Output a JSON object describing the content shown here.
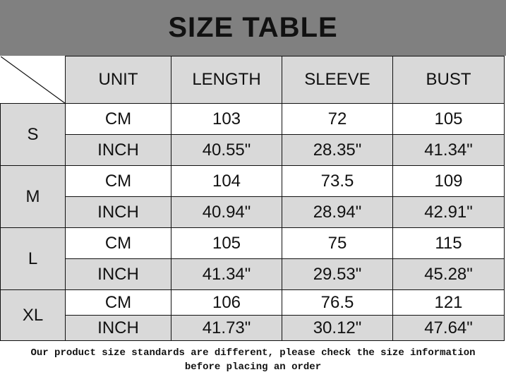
{
  "title": "SIZE TABLE",
  "columns": [
    "UNIT",
    "LENGTH",
    "SLEEVE",
    "BUST"
  ],
  "sizes": [
    {
      "size": "S",
      "rows": [
        {
          "unit": "CM",
          "length": "103",
          "sleeve": "72",
          "bust": "105"
        },
        {
          "unit": "INCH",
          "length": "40.55\"",
          "sleeve": "28.35\"",
          "bust": "41.34\""
        }
      ]
    },
    {
      "size": "M",
      "rows": [
        {
          "unit": "CM",
          "length": "104",
          "sleeve": "73.5",
          "bust": "109"
        },
        {
          "unit": "INCH",
          "length": "40.94\"",
          "sleeve": "28.94\"",
          "bust": "42.91\""
        }
      ]
    },
    {
      "size": "L",
      "rows": [
        {
          "unit": "CM",
          "length": "105",
          "sleeve": "75",
          "bust": "115"
        },
        {
          "unit": "INCH",
          "length": "41.34\"",
          "sleeve": "29.53\"",
          "bust": "45.28\""
        }
      ]
    },
    {
      "size": "XL",
      "rows": [
        {
          "unit": "CM",
          "length": "106",
          "sleeve": "76.5",
          "bust": "121"
        },
        {
          "unit": "INCH",
          "length": "41.73\"",
          "sleeve": "30.12\"",
          "bust": "47.64\""
        }
      ]
    }
  ],
  "note": {
    "line1": "Our product size standards are different, please check the size information",
    "line2": "before placing an order"
  },
  "colors": {
    "title_bar": "#808080",
    "shaded_cell": "#d9d9d9",
    "white_cell": "#ffffff"
  }
}
